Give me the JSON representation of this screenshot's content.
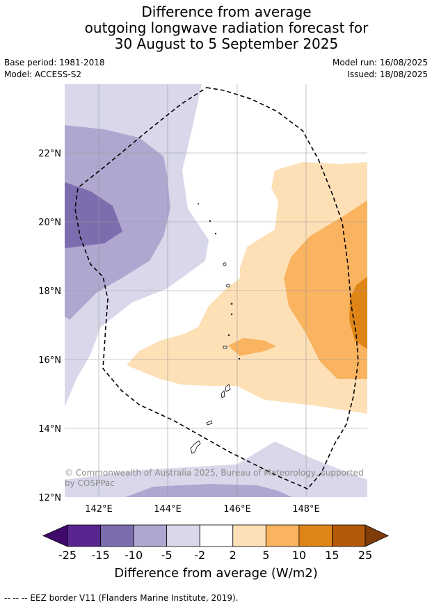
{
  "title": {
    "line1": "Difference from average",
    "line2": "outgoing longwave radiation forecast for",
    "line3": "30 August to 5 September 2025"
  },
  "meta": {
    "base_period": "Base period: 1981-2018",
    "model": "Model: ACCESS-S2",
    "model_run": "Model run: 16/08/2025",
    "issued": "Issued: 18/08/2025"
  },
  "map": {
    "lat_labels": [
      "22°N",
      "20°N",
      "18°N",
      "16°N",
      "14°N",
      "12°N"
    ],
    "lon_labels": [
      "142°E",
      "144°E",
      "146°E",
      "148°E"
    ],
    "copyright_line1": "© Commonwealth of Australia 2025, Bureau of Meteorology, supported",
    "copyright_line2": "by COSPPac"
  },
  "colorbar": {
    "tick_labels": [
      "-25",
      "-15",
      "-10",
      "-5",
      "-2",
      "2",
      "5",
      "10",
      "15",
      "25"
    ],
    "colors": [
      "#3f0a6b",
      "#58268f",
      "#7d6dae",
      "#afa7d0",
      "#d8d8ea",
      "#ffffff",
      "#fde0b6",
      "#fab35f",
      "#df8517",
      "#b35909",
      "#7f3b08"
    ],
    "title": "Difference from average (W/m2)"
  },
  "footer": "--  --  -- EEZ border V11 (Flanders Marine Institute, 2019)."
}
